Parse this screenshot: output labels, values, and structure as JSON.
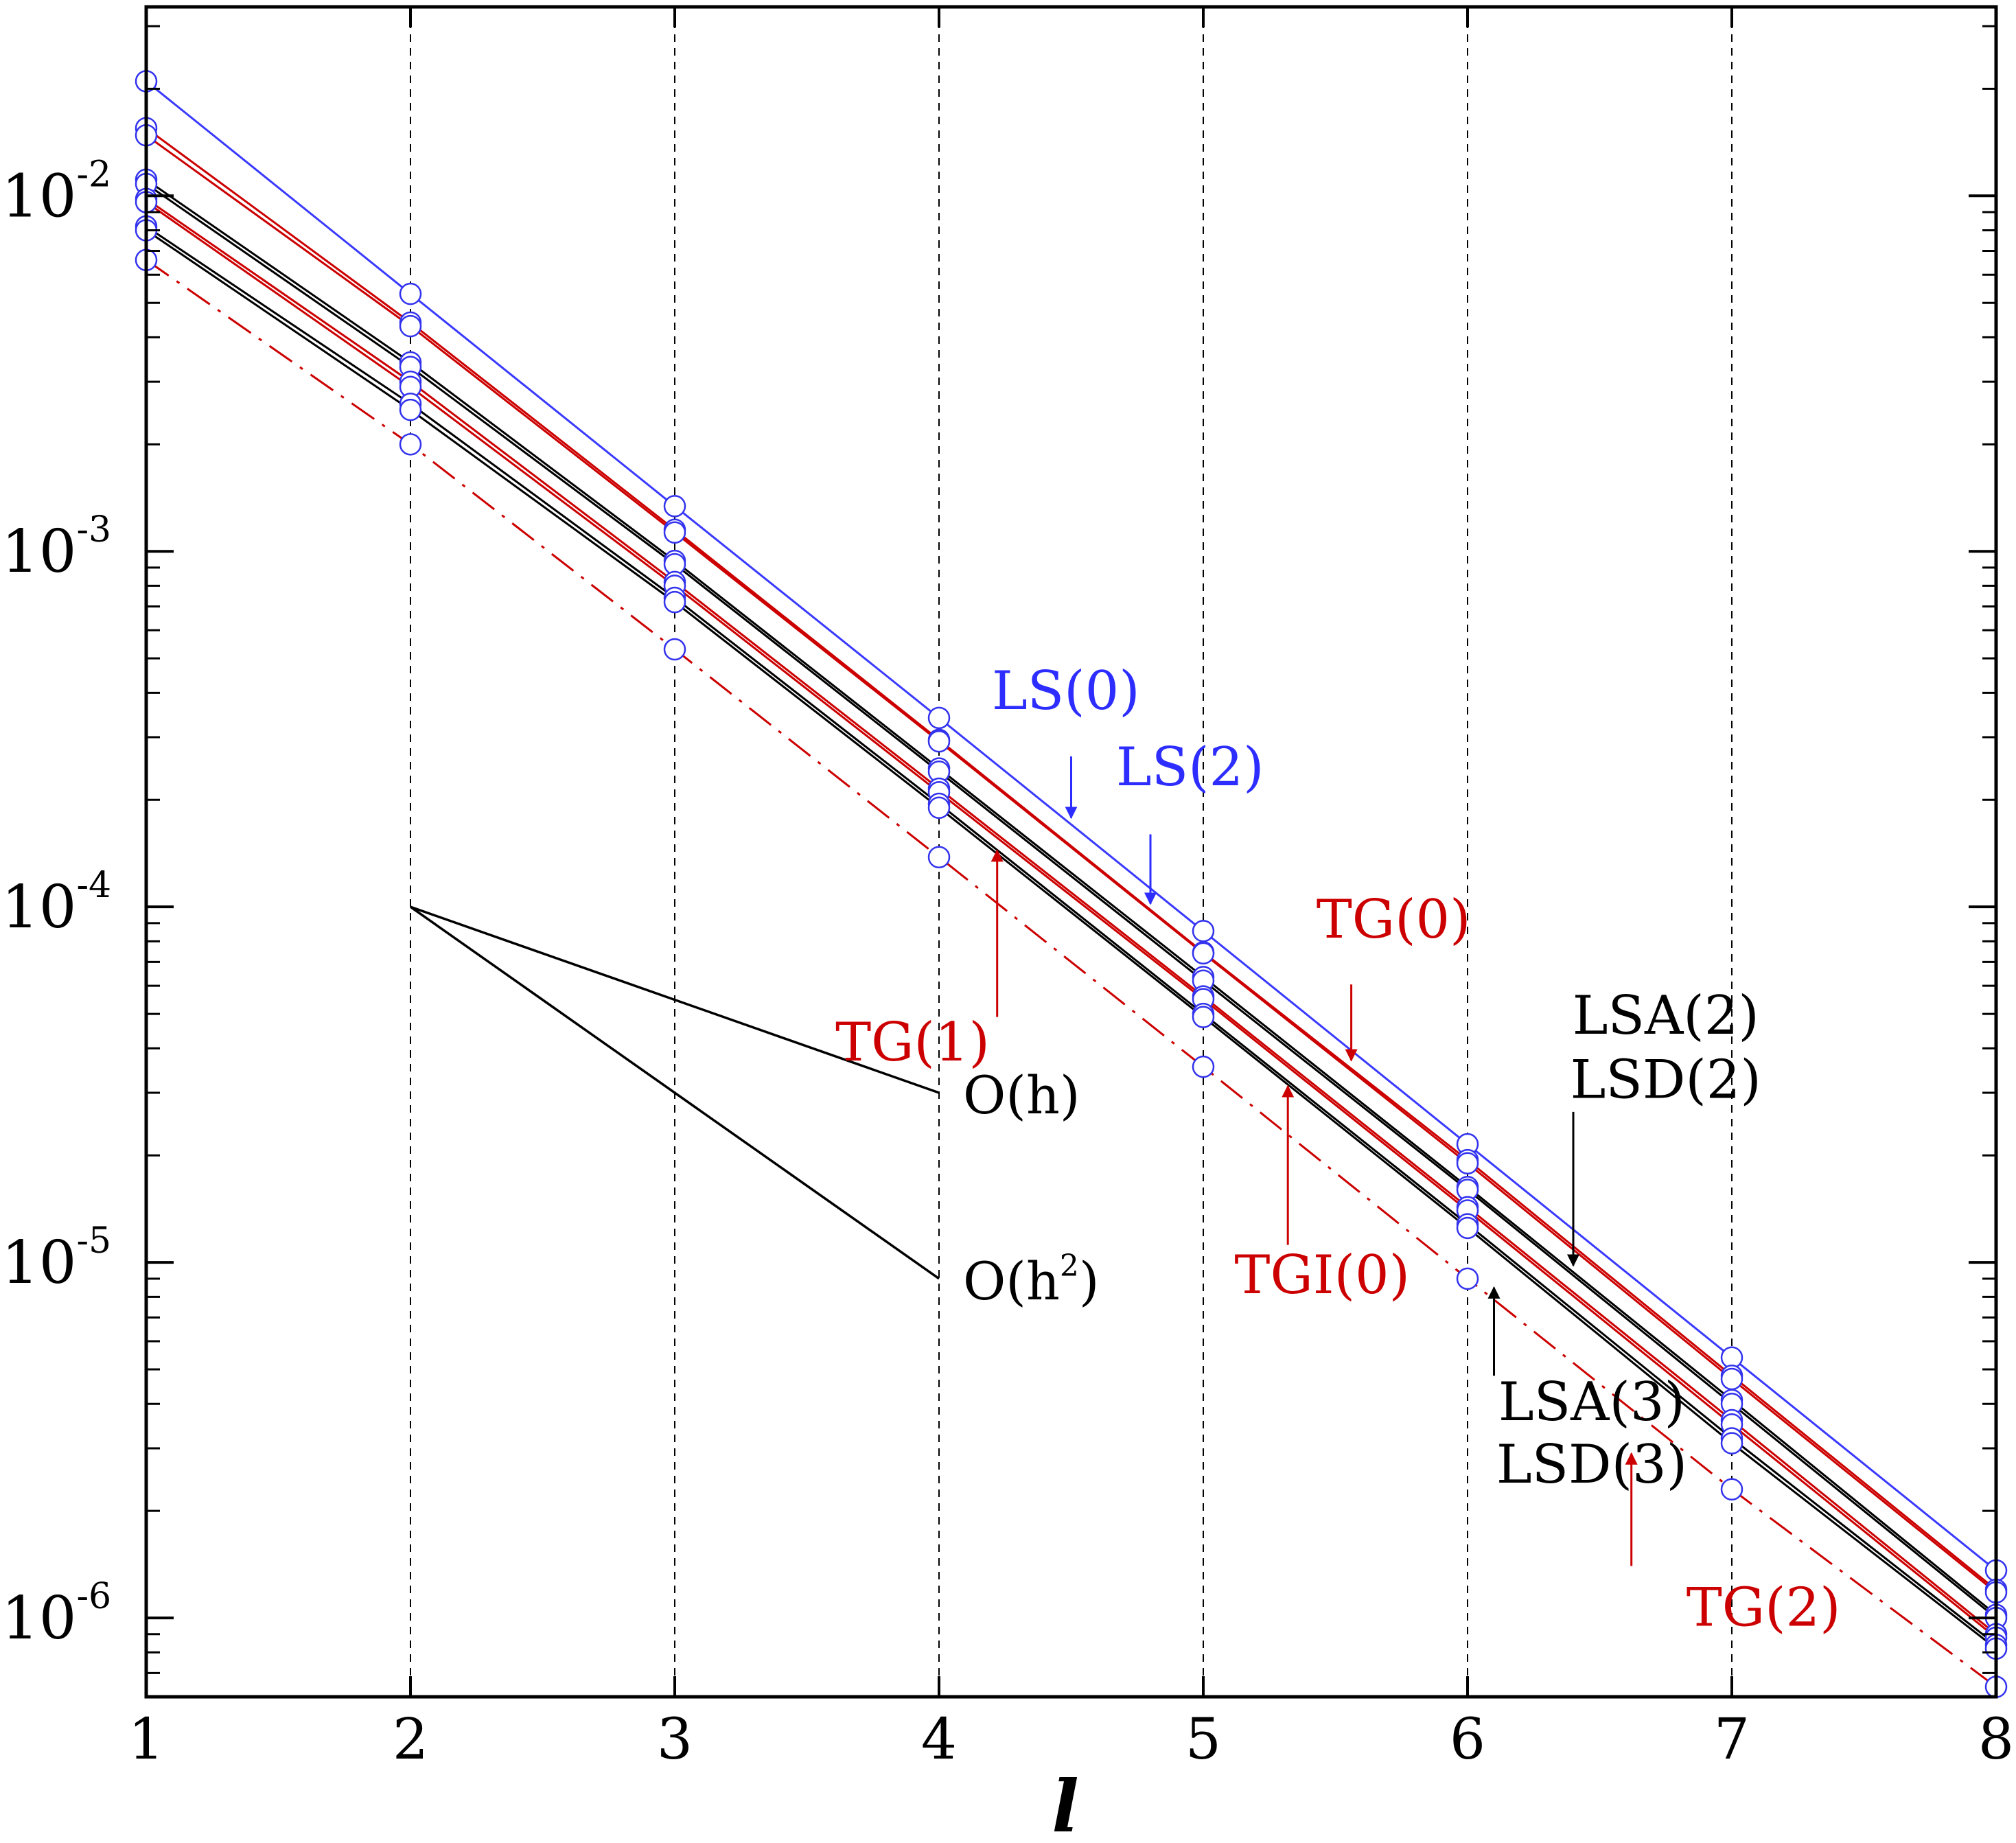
{
  "chart_data": {
    "type": "line",
    "title": "",
    "xlabel": "l",
    "ylabel": "",
    "xscale": "linear",
    "yscale": "log",
    "xlim": [
      1,
      8
    ],
    "ylim": [
      6e-07,
      0.034
    ],
    "x_ticks": [
      1,
      2,
      3,
      4,
      5,
      6,
      7,
      8
    ],
    "x_tick_labels": [
      "1",
      "2",
      "3",
      "4",
      "5",
      "6",
      "7",
      "8"
    ],
    "y_ticks": [
      {
        "value": 0.01,
        "base": "10",
        "exp": "-2"
      },
      {
        "value": 0.001,
        "base": "10",
        "exp": "-3"
      },
      {
        "value": 0.0001,
        "base": "10",
        "exp": "-4"
      },
      {
        "value": 1e-05,
        "base": "10",
        "exp": "-5"
      },
      {
        "value": 1e-06,
        "base": "10",
        "exp": "-6"
      }
    ],
    "vertical_gridlines": [
      2,
      3,
      4,
      5,
      6,
      7,
      8
    ],
    "marker_color": "#3333ee",
    "series": [
      {
        "name": "LS(0)",
        "color": "#3a3aff",
        "style": "solid",
        "x": [
          1,
          2,
          3,
          4,
          5,
          6,
          7,
          8
        ],
        "y": [
          0.021,
          0.0053,
          0.00134,
          0.00034,
          8.55e-05,
          2.15e-05,
          5.4e-06,
          1.36e-06
        ]
      },
      {
        "name": "LS(2)",
        "color": "#cc0000",
        "style": "solid",
        "x": [
          1,
          2,
          3,
          4,
          5,
          6,
          7,
          8
        ],
        "y": [
          0.0155,
          0.0044,
          0.00115,
          0.000295,
          7.45e-05,
          1.94e-05,
          4.8e-06,
          1.2e-06
        ]
      },
      {
        "name": "TG(0)",
        "color": "#cc0000",
        "style": "solid",
        "x": [
          1,
          2,
          3,
          4,
          5,
          6,
          7,
          8
        ],
        "y": [
          0.0148,
          0.0043,
          0.00113,
          0.000292,
          7.4e-05,
          1.9e-05,
          4.7e-06,
          1.18e-06
        ]
      },
      {
        "name": "LSA(2)",
        "color": "#000000",
        "style": "solid",
        "x": [
          1,
          2,
          3,
          4,
          5,
          6,
          7,
          8
        ],
        "y": [
          0.0111,
          0.0034,
          0.00094,
          0.000245,
          6.35e-05,
          1.63e-05,
          4.1e-06,
          1.02e-06
        ]
      },
      {
        "name": "LSD(2)",
        "color": "#000000",
        "style": "solid",
        "x": [
          1,
          2,
          3,
          4,
          5,
          6,
          7,
          8
        ],
        "y": [
          0.0108,
          0.0033,
          0.00092,
          0.00024,
          6.2e-05,
          1.6e-05,
          4e-06,
          1e-06
        ]
      },
      {
        "name": "TG(1)",
        "color": "#cc0000",
        "style": "solid",
        "x": [
          1,
          2,
          3,
          4,
          5,
          6,
          7,
          8
        ],
        "y": [
          0.0098,
          0.003,
          0.00082,
          0.000215,
          5.6e-05,
          1.43e-05,
          3.6e-06,
          9e-07
        ]
      },
      {
        "name": "TGI(0)",
        "color": "#cc0000",
        "style": "solid",
        "x": [
          1,
          2,
          3,
          4,
          5,
          6,
          7,
          8
        ],
        "y": [
          0.0096,
          0.0029,
          0.0008,
          0.00021,
          5.5e-05,
          1.4e-05,
          3.5e-06,
          8.8e-07
        ]
      },
      {
        "name": "LSA(3)",
        "color": "#000000",
        "style": "solid",
        "x": [
          1,
          2,
          3,
          4,
          5,
          6,
          7,
          8
        ],
        "y": [
          0.0082,
          0.0026,
          0.00074,
          0.000195,
          5e-05,
          1.28e-05,
          3.2e-06,
          8.4e-07
        ]
      },
      {
        "name": "LSD(3)",
        "color": "#000000",
        "style": "solid",
        "x": [
          1,
          2,
          3,
          4,
          5,
          6,
          7,
          8
        ],
        "y": [
          0.008,
          0.0025,
          0.00072,
          0.00019,
          4.9e-05,
          1.25e-05,
          3.1e-06,
          8.2e-07
        ]
      },
      {
        "name": "TG(2)",
        "color": "#cc0000",
        "style": "dashdot",
        "x": [
          1,
          2,
          3,
          4,
          5,
          6,
          7,
          8
        ],
        "y": [
          0.0066,
          0.002,
          0.00053,
          0.000138,
          3.55e-05,
          9e-06,
          2.3e-06,
          6.4e-07
        ]
      }
    ],
    "slope_triangles": [
      {
        "name": "O(h)",
        "from": [
          2,
          0.0001
        ],
        "to": [
          4,
          3e-05
        ],
        "label_text": "O(h)",
        "sup": ""
      },
      {
        "name": "O(h2)",
        "from": [
          2,
          0.0001
        ],
        "to": [
          4,
          9e-06
        ],
        "label_text": "O(h",
        "sup": "2",
        "label_close": ")"
      }
    ],
    "annotations": [
      {
        "text": "LS(0)",
        "color": "#2d2dff",
        "label_at": [
          4.48,
          0.00036
        ],
        "arrow_from": [
          4.5,
          0.000265
        ],
        "arrow_to": [
          4.5,
          0.000178
        ]
      },
      {
        "text": "LS(2)",
        "color": "#2d2dff",
        "label_at": [
          4.95,
          0.00022
        ],
        "arrow_from": [
          4.8,
          0.00016
        ],
        "arrow_to": [
          4.8,
          0.000102
        ]
      },
      {
        "text": "TG(0)",
        "color": "#cc0000",
        "label_at": [
          5.72,
          8.2e-05
        ],
        "arrow_from": [
          5.56,
          6.05e-05
        ],
        "arrow_to": [
          5.56,
          3.7e-05
        ]
      },
      {
        "text": "TG(1)",
        "color": "#cc0000",
        "label_at": [
          3.9,
          3.7e-05
        ],
        "arrow_from": [
          4.22,
          4.9e-05
        ],
        "arrow_to": [
          4.22,
          0.000144
        ]
      },
      {
        "text": "TGI(0)",
        "color": "#cc0000",
        "label_at": [
          5.45,
          8.2e-06
        ],
        "arrow_from": [
          5.32,
          1.12e-05
        ],
        "arrow_to": [
          5.32,
          3.13e-05
        ]
      },
      {
        "text": "LSA(2)",
        "color": "#000000",
        "label_at": [
          6.75,
          4.4e-05
        ],
        "arrow_from": [
          6.4,
          2.65e-05
        ],
        "arrow_to": [
          6.4,
          9.8e-06
        ]
      },
      {
        "text": "LSD(2)",
        "color": "#000000",
        "label_at": [
          6.75,
          2.9e-05
        ],
        "arrow_from": null,
        "arrow_to": null
      },
      {
        "text": "LSA(3)",
        "color": "#000000",
        "label_at": [
          6.47,
          3.6e-06
        ],
        "arrow_from": [
          6.1,
          4.8e-06
        ],
        "arrow_to": [
          6.1,
          8.5e-06
        ]
      },
      {
        "text": "LSD(3)",
        "color": "#000000",
        "label_at": [
          6.47,
          2.4e-06
        ],
        "arrow_from": null,
        "arrow_to": null
      },
      {
        "text": "TG(2)",
        "color": "#cc0000",
        "label_at": [
          7.12,
          9.5e-07
        ],
        "arrow_from": [
          6.62,
          1.4e-06
        ],
        "arrow_to": [
          6.62,
          2.9e-06
        ]
      }
    ]
  }
}
